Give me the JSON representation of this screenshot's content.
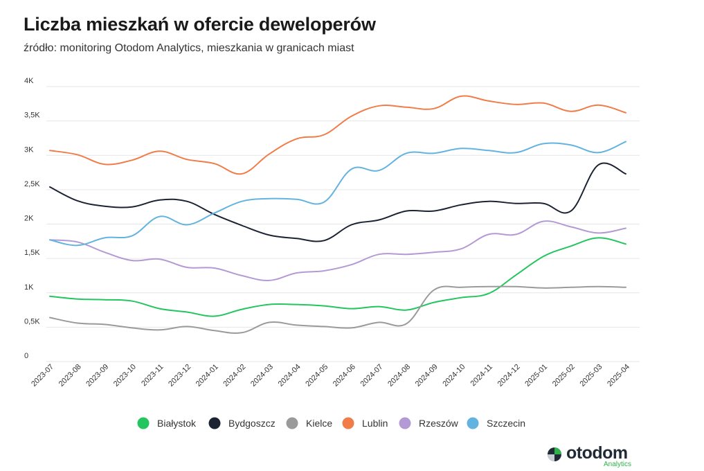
{
  "title": "Liczba mieszkań w ofercie deweloperów",
  "subtitle": "źródło: monitoring Otodom Analytics, mieszkania w granicach miast",
  "logo": {
    "name": "otodom",
    "sub": "Analytics"
  },
  "chart_data": {
    "type": "line",
    "title": "Liczba mieszkań w ofercie deweloperów",
    "xlabel": "",
    "ylabel": "",
    "ylim": [
      0,
      4000
    ],
    "yticks": [
      0,
      500,
      1000,
      1500,
      2000,
      2500,
      3000,
      3500,
      4000
    ],
    "ytick_labels": [
      "0",
      "0,5K",
      "1K",
      "1,5K",
      "2K",
      "2,5K",
      "3K",
      "3,5K",
      "4K"
    ],
    "grid": true,
    "legend_position": "bottom",
    "x": [
      "2023-07",
      "2023-08",
      "2023-09",
      "2023-10",
      "2023-11",
      "2023-12",
      "2024-01",
      "2024-02",
      "2024-03",
      "2024-04",
      "2024-05",
      "2024-06",
      "2024-07",
      "2024-08",
      "2024-09",
      "2024-10",
      "2024-11",
      "2024-12",
      "2025-01",
      "2025-02",
      "2025-03",
      "2025-04"
    ],
    "series": [
      {
        "name": "Białystok",
        "color": "#22c55e",
        "values": [
          950,
          910,
          900,
          880,
          770,
          720,
          660,
          760,
          830,
          830,
          810,
          770,
          800,
          750,
          860,
          930,
          990,
          1260,
          1530,
          1680,
          1800,
          1710
        ]
      },
      {
        "name": "Bydgoszcz",
        "color": "#1b2333",
        "values": [
          2540,
          2340,
          2260,
          2250,
          2350,
          2330,
          2140,
          1980,
          1840,
          1790,
          1760,
          1990,
          2060,
          2190,
          2190,
          2280,
          2330,
          2300,
          2300,
          2190,
          2860,
          2730
        ]
      },
      {
        "name": "Kielce",
        "color": "#9a9a9a",
        "values": [
          640,
          560,
          540,
          490,
          460,
          510,
          450,
          420,
          570,
          530,
          510,
          490,
          570,
          550,
          1040,
          1080,
          1090,
          1090,
          1070,
          1080,
          1090,
          1080
        ]
      },
      {
        "name": "Lublin",
        "color": "#f07c47",
        "values": [
          3070,
          3010,
          2870,
          2930,
          3060,
          2940,
          2880,
          2730,
          3020,
          3240,
          3300,
          3570,
          3720,
          3700,
          3680,
          3860,
          3790,
          3740,
          3760,
          3640,
          3730,
          3620
        ]
      },
      {
        "name": "Rzeszów",
        "color": "#b39ad4",
        "values": [
          1770,
          1740,
          1590,
          1470,
          1490,
          1370,
          1360,
          1250,
          1180,
          1290,
          1320,
          1410,
          1560,
          1560,
          1590,
          1640,
          1850,
          1850,
          2040,
          1960,
          1870,
          1940
        ]
      },
      {
        "name": "Szczecin",
        "color": "#63b3e0",
        "values": [
          1770,
          1690,
          1800,
          1830,
          2110,
          1990,
          2160,
          2330,
          2370,
          2360,
          2320,
          2800,
          2780,
          3030,
          3030,
          3100,
          3070,
          3040,
          3170,
          3150,
          3040,
          3200
        ]
      }
    ]
  }
}
